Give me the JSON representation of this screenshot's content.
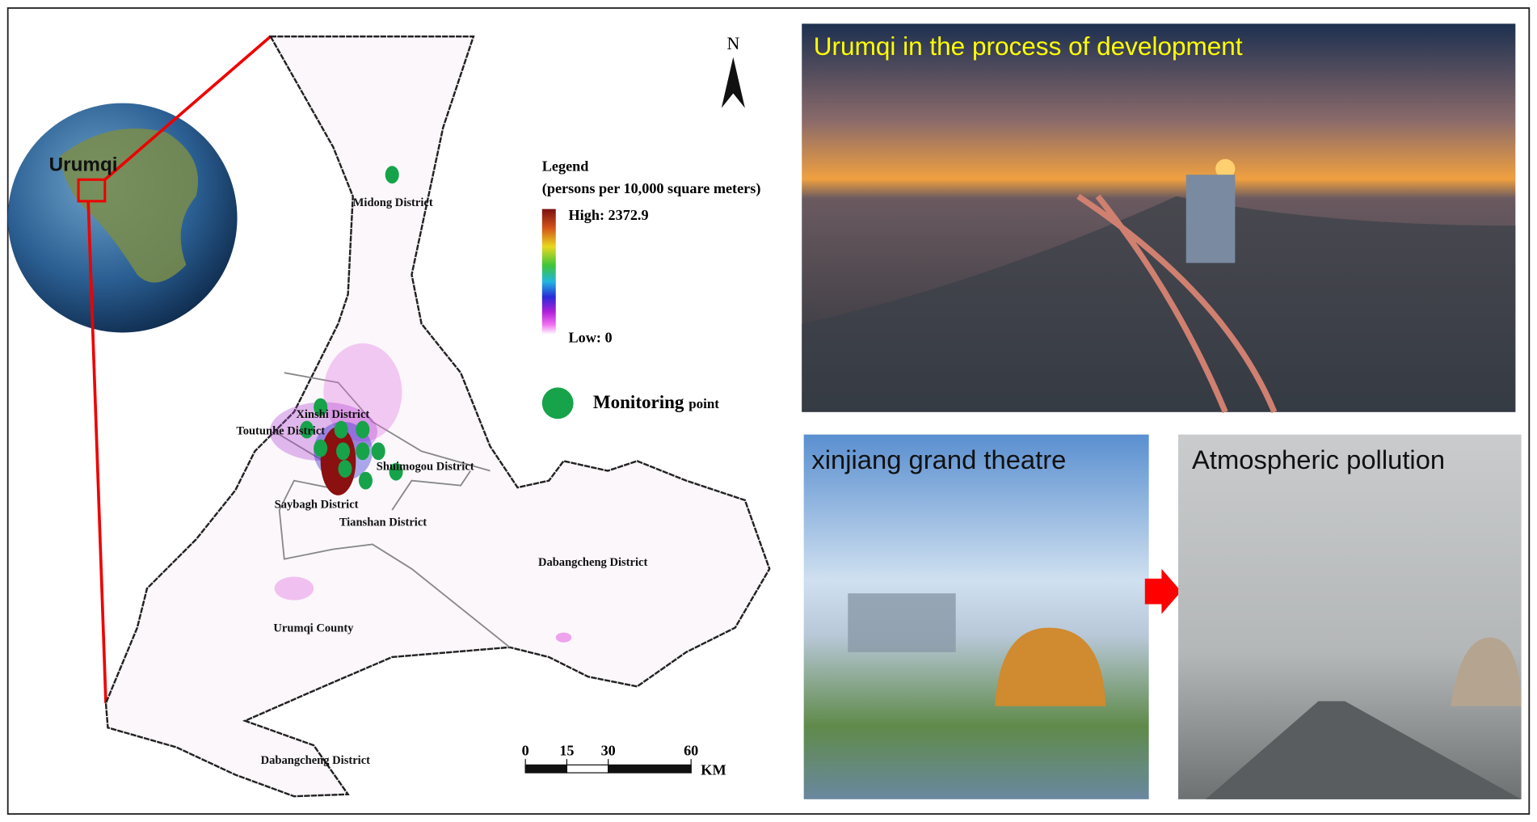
{
  "globe": {
    "label": "Urumqi"
  },
  "map": {
    "compass": "N",
    "districts": [
      "Midong District",
      "Xinshi District",
      "Toutunhe District",
      "Shuimogou District",
      "Saybagh District",
      "Tianshan District",
      "Dabangcheng District",
      "Urumqi County",
      "Dabangcheng District"
    ],
    "legend": {
      "title": "Legend",
      "unit": "(persons per 10,000 square meters)",
      "high": "High: 2372.9",
      "low": "Low: 0",
      "point_main": "Monitoring",
      "point_small": "point"
    },
    "scale_bar": {
      "ticks": [
        0,
        15,
        30,
        60
      ],
      "unit": "KM"
    }
  },
  "photos": [
    {
      "caption": "Urumqi in the process of development"
    },
    {
      "caption": "xinjiang grand theatre"
    },
    {
      "caption": "Atmospheric pollution"
    }
  ]
}
